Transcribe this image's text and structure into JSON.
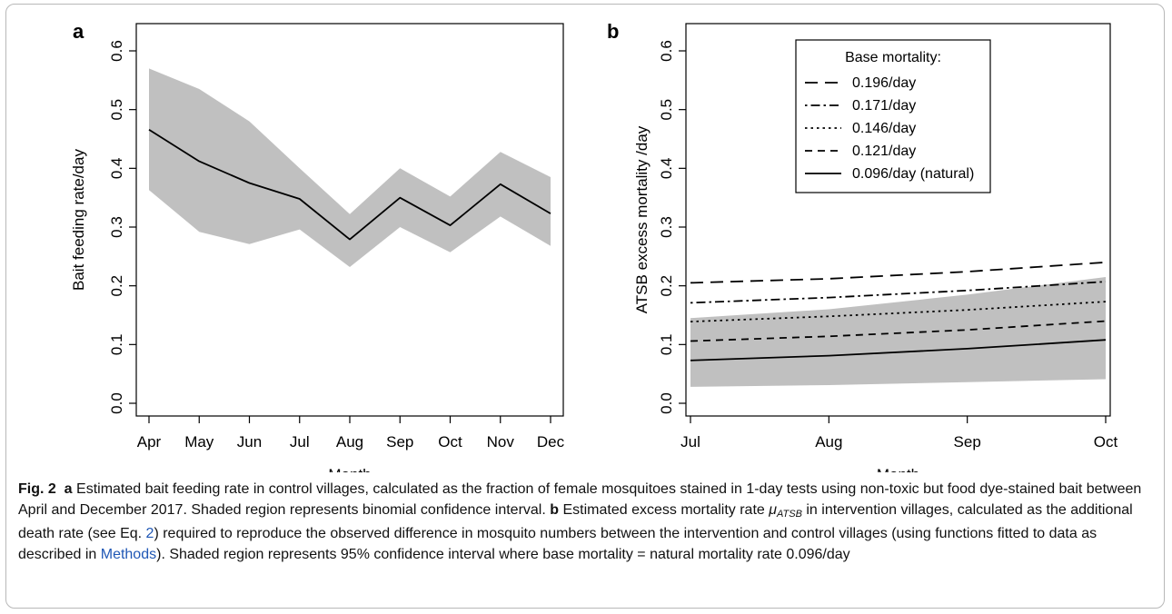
{
  "chart_data": [
    {
      "panel_label": "a",
      "type": "line",
      "xlabel": "Month",
      "ylabel": "Bait feeding rate/day",
      "categories": [
        "Apr",
        "May",
        "Jun",
        "Jul",
        "Aug",
        "Sep",
        "Oct",
        "Nov",
        "Dec"
      ],
      "ylim": [
        0.0,
        0.6
      ],
      "yticks": [
        "0.0",
        "0.1",
        "0.2",
        "0.3",
        "0.4",
        "0.5",
        "0.6"
      ],
      "grid": false,
      "series": [
        {
          "values": [
            0.466,
            0.412,
            0.375,
            0.348,
            0.279,
            0.35,
            0.303,
            0.373,
            0.323
          ],
          "line": "solid",
          "color": "#000000"
        }
      ],
      "band": {
        "upper": [
          0.57,
          0.535,
          0.48,
          0.4,
          0.322,
          0.4,
          0.352,
          0.428,
          0.385
        ],
        "lower": [
          0.363,
          0.292,
          0.271,
          0.296,
          0.232,
          0.3,
          0.257,
          0.318,
          0.268
        ],
        "color": "#c0c0c0"
      }
    },
    {
      "panel_label": "b",
      "type": "line",
      "xlabel": "Month",
      "ylabel": "ATSB excess mortality /day",
      "categories": [
        "Jul",
        "Aug",
        "Sep",
        "Oct"
      ],
      "ylim": [
        0.0,
        0.6
      ],
      "yticks": [
        "0.0",
        "0.1",
        "0.2",
        "0.3",
        "0.4",
        "0.5",
        "0.6"
      ],
      "grid": false,
      "legend": {
        "title": "Base mortality:",
        "position": "top-center"
      },
      "series": [
        {
          "name": "0.196/day",
          "line": "longdash",
          "values": [
            0.205,
            0.212,
            0.224,
            0.24
          ]
        },
        {
          "name": "0.171/day",
          "line": "dotdash",
          "values": [
            0.171,
            0.18,
            0.192,
            0.207
          ]
        },
        {
          "name": "0.146/day",
          "line": "dotted",
          "values": [
            0.139,
            0.148,
            0.159,
            0.173
          ]
        },
        {
          "name": "0.121/day",
          "line": "dashed",
          "values": [
            0.106,
            0.114,
            0.125,
            0.14
          ]
        },
        {
          "name": "0.096/day (natural)",
          "line": "solid",
          "values": [
            0.073,
            0.081,
            0.093,
            0.108
          ]
        }
      ],
      "band": {
        "upper": [
          0.145,
          0.16,
          0.185,
          0.215
        ],
        "lower": [
          0.028,
          0.031,
          0.036,
          0.041
        ],
        "color": "#c0c0c0"
      }
    }
  ],
  "caption": {
    "fig_label": "Fig. 2",
    "a_label": "a",
    "a_text": "Estimated bait feeding rate in control villages, calculated as the fraction of female mosquitoes stained in 1-day tests using non-toxic but food dye-stained bait between April and December 2017. Shaded region represents binomial confidence interval.",
    "b_label": "b",
    "b_text_1": "Estimated excess mortality rate",
    "mu": "μ",
    "mu_sub": "ATSB",
    "b_text_2": "in intervention villages, calculated as the additional death rate (see Eq.",
    "eq_ref": "2",
    "b_text_3": ") required to reproduce the observed difference in mosquito numbers between the intervention and control villages (using functions fitted to data as described in",
    "methods_ref": "Methods",
    "b_text_4": "). Shaded region represents 95% confidence interval where base mortality = natural mortality rate 0.096/day"
  }
}
